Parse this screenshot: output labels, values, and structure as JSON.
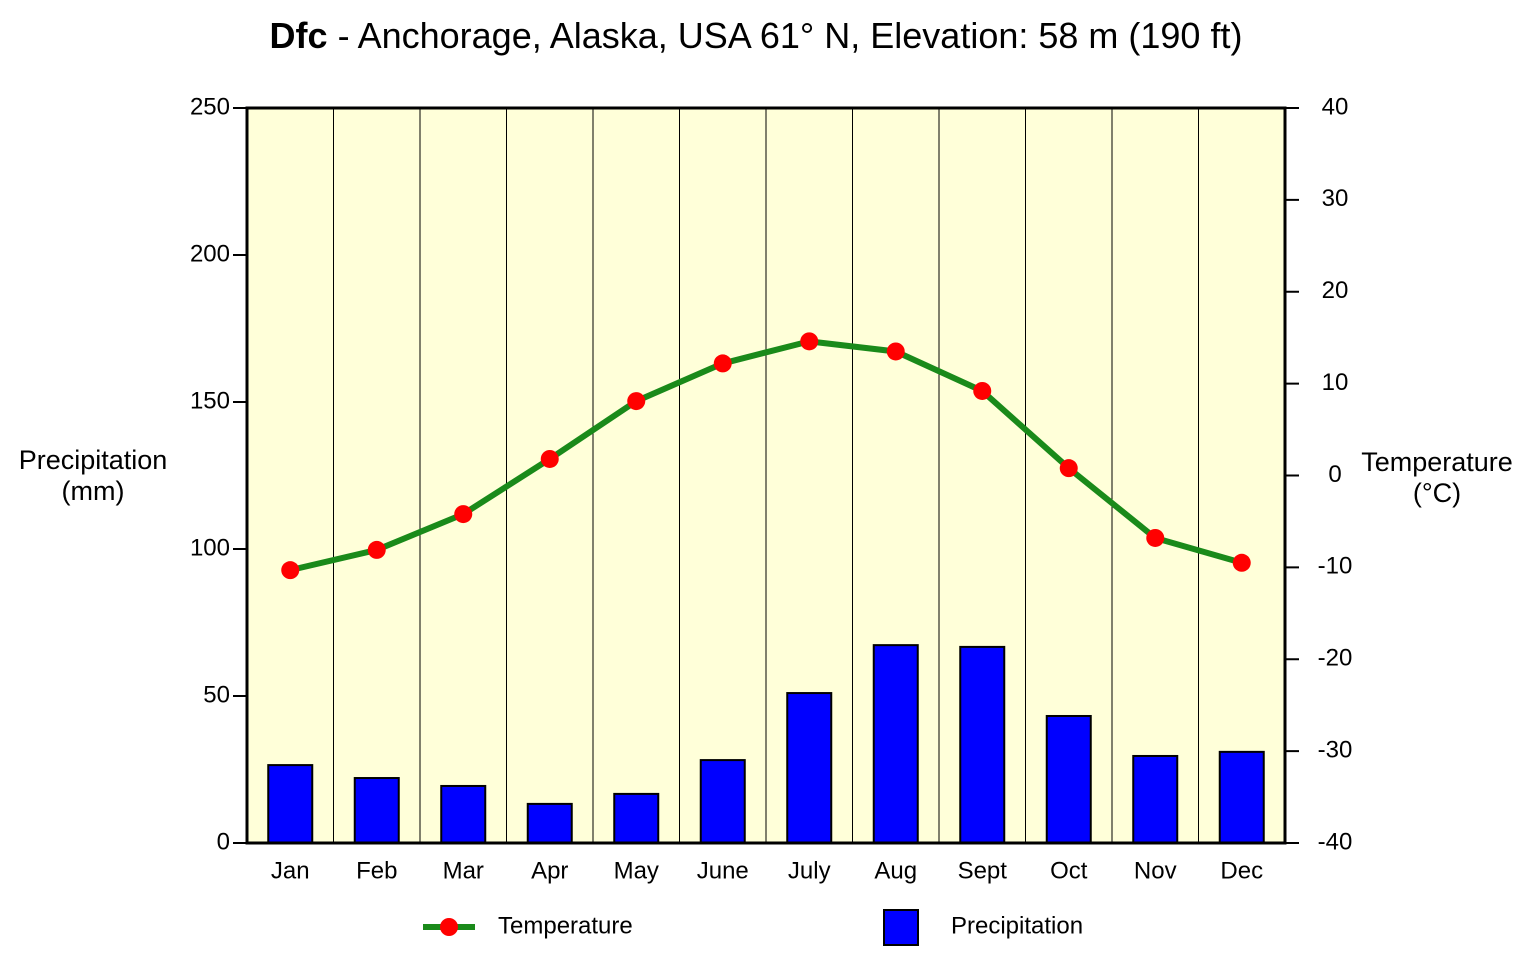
{
  "chart_data": {
    "type": "bar-line",
    "title_bold": "Dfc",
    "title": "- Anchorage, Alaska, USA 61° N, Elevation: 58 m (190 ft)",
    "y_label": [
      "Precipitation",
      "(mm)"
    ],
    "y2_label": [
      "Temperature",
      "(°C)"
    ],
    "categories": [
      "Jan",
      "Feb",
      "Mar",
      "Apr",
      "May",
      "June",
      "July",
      "Aug",
      "Sept",
      "Oct",
      "Nov",
      "Dec"
    ],
    "series": [
      {
        "name": "Precipitation",
        "type": "bar",
        "color": "#0000ff",
        "values": [
          26.5,
          22.1,
          19.4,
          13.3,
          16.7,
          28.2,
          51.0,
          67.3,
          66.7,
          43.2,
          29.6,
          31.0
        ]
      },
      {
        "name": "Temperature",
        "type": "line",
        "axis": "y2",
        "color": "#1a8a1a",
        "marker_color": "#ff0000",
        "values": [
          -10.3,
          -8.1,
          -4.2,
          1.8,
          8.1,
          12.2,
          14.6,
          13.5,
          9.2,
          0.8,
          -6.8,
          -9.5
        ]
      }
    ],
    "ylim": [
      0,
      250
    ],
    "yticks": [
      0,
      50,
      100,
      150,
      200,
      250
    ],
    "y2lim": [
      -40,
      40
    ],
    "y2ticks": [
      -40,
      -30,
      -20,
      -10,
      0,
      10,
      20,
      30,
      40
    ],
    "background": "#ffffd9"
  }
}
